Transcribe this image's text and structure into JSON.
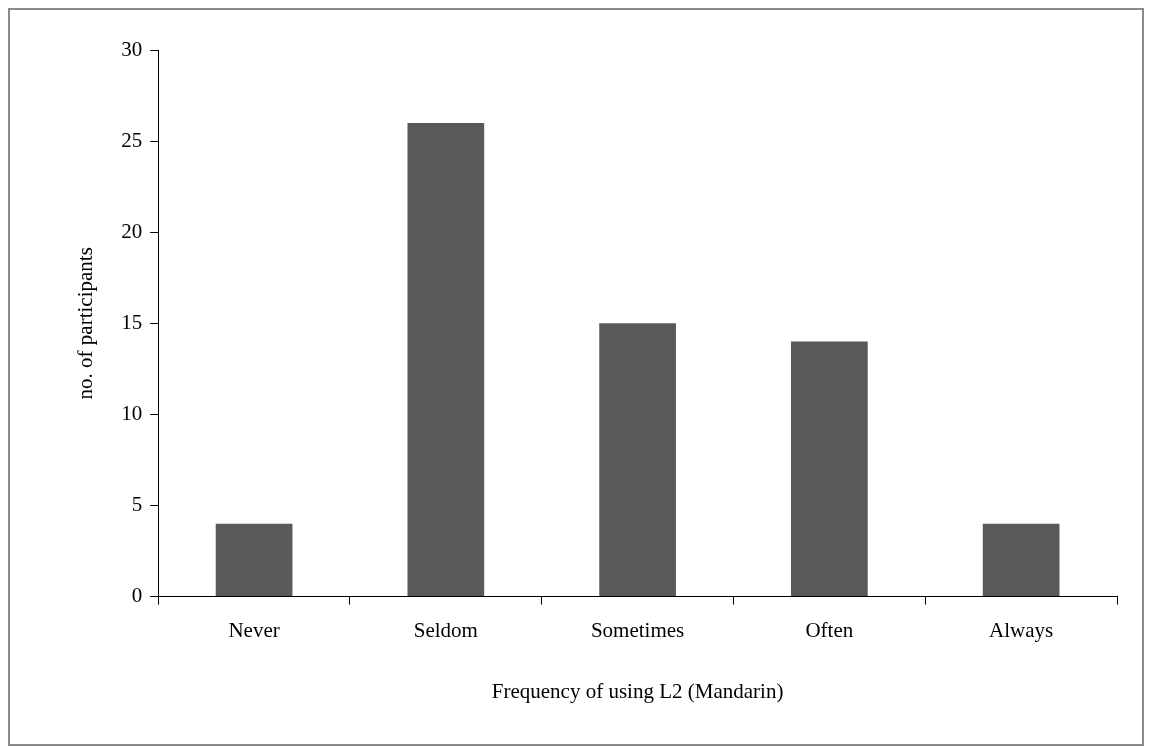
{
  "chart_data": {
    "type": "bar",
    "xlabel": "Frequency of using L2 (Mandarin)",
    "ylabel": "no. of participants",
    "categories": [
      "Never",
      "Seldom",
      "Sometimes",
      "Often",
      "Always"
    ],
    "values": [
      4,
      26,
      15,
      14,
      4
    ],
    "color": "#595959",
    "ylim": [
      0,
      30
    ],
    "yticks": [
      0,
      5,
      10,
      15,
      20,
      25,
      30
    ],
    "grid": false,
    "legend": false
  }
}
